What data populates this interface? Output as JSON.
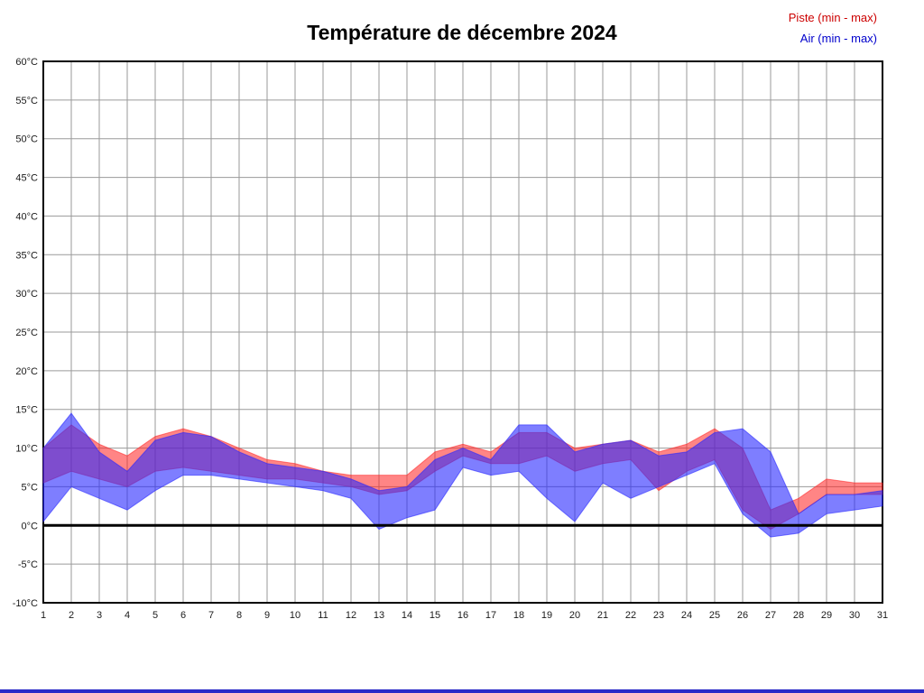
{
  "chart_data": {
    "type": "area",
    "title": "Température de décembre 2024",
    "xlabel": "",
    "ylabel": "",
    "ylim": [
      -10,
      60
    ],
    "ytick_step": 5,
    "ytick_suffix": "°C",
    "grid": true,
    "zero_line": true,
    "legend_position": "top-right",
    "categories": [
      1,
      2,
      3,
      4,
      5,
      6,
      7,
      8,
      9,
      10,
      11,
      12,
      13,
      14,
      15,
      16,
      17,
      18,
      19,
      20,
      21,
      22,
      23,
      24,
      25,
      26,
      27,
      28,
      29,
      30,
      31
    ],
    "series": [
      {
        "name": "Piste (min - max)",
        "fill_color": "#ff2020",
        "fill_opacity": 0.55,
        "legend_color": "#cc0000",
        "min": [
          5.5,
          7.0,
          6.0,
          5.0,
          7.0,
          7.5,
          7.0,
          6.5,
          6.0,
          6.0,
          5.5,
          5.0,
          4.0,
          4.5,
          7.0,
          9.0,
          8.0,
          8.0,
          9.0,
          7.0,
          8.0,
          8.5,
          4.5,
          7.0,
          8.5,
          2.0,
          -0.5,
          1.5,
          4.0,
          4.0,
          4.0
        ],
        "max": [
          10.0,
          13.0,
          10.5,
          9.0,
          11.5,
          12.5,
          11.5,
          10.0,
          8.5,
          8.0,
          7.0,
          6.5,
          6.5,
          6.5,
          9.5,
          10.5,
          9.5,
          12.0,
          12.0,
          10.0,
          10.5,
          11.0,
          9.5,
          10.5,
          12.5,
          10.0,
          2.0,
          3.5,
          6.0,
          5.5,
          5.5
        ]
      },
      {
        "name": "Air (min - max)",
        "fill_color": "#2828ff",
        "fill_opacity": 0.6,
        "legend_color": "#0000cc",
        "min": [
          0.5,
          5.0,
          3.5,
          2.0,
          4.5,
          6.5,
          6.5,
          6.0,
          5.5,
          5.0,
          4.5,
          3.5,
          -0.5,
          1.0,
          2.0,
          7.5,
          6.5,
          7.0,
          3.5,
          0.5,
          5.5,
          3.5,
          5.0,
          6.5,
          8.0,
          1.5,
          -1.5,
          -1.0,
          1.5,
          2.0,
          2.5
        ],
        "max": [
          10.0,
          14.5,
          9.5,
          7.0,
          11.0,
          12.0,
          11.5,
          9.5,
          8.0,
          7.5,
          7.0,
          6.0,
          4.5,
          5.0,
          8.5,
          10.0,
          8.5,
          13.0,
          13.0,
          9.5,
          10.5,
          11.0,
          9.0,
          9.5,
          12.0,
          12.5,
          9.5,
          1.5,
          4.0,
          4.0,
          4.5
        ]
      }
    ]
  },
  "colors": {
    "grid": "#9a9a9a",
    "plot_border": "#000000",
    "zero_line": "#000000",
    "bottom_bar": "#2a2ac8"
  }
}
